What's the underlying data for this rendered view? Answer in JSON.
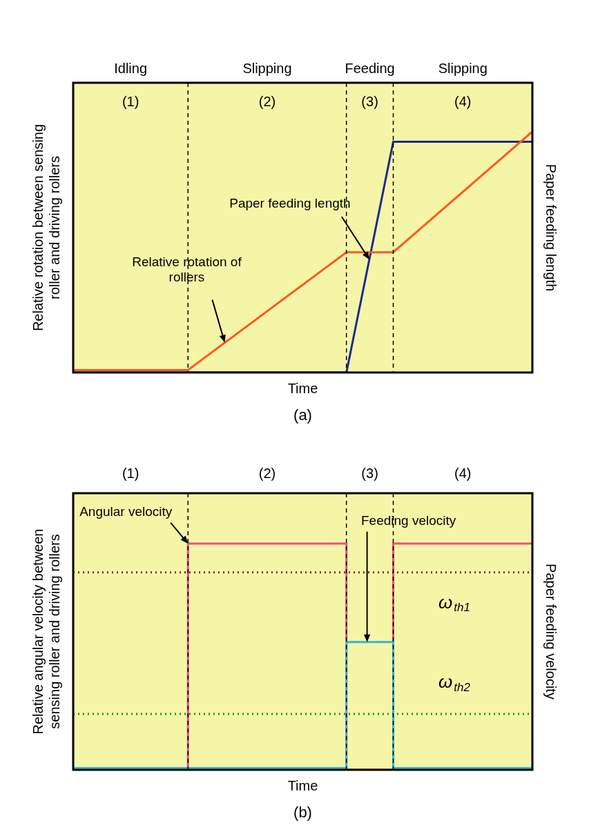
{
  "chart_data": [
    {
      "type": "line",
      "caption": "(a)",
      "x_label": "Time",
      "y_label": "Relative rotation between sensing roller and driving rollers",
      "y2_label": "Paper feeding length",
      "xlim": [
        0,
        10
      ],
      "ylim": [
        0,
        6
      ],
      "y2lim": [
        0,
        6
      ],
      "grid": false,
      "tick_labels": false,
      "phases": [
        {
          "number": "(1)",
          "state": "Idling"
        },
        {
          "number": "(2)",
          "state": "Slipping"
        },
        {
          "number": "(3)",
          "state": "Feeding"
        },
        {
          "number": "(4)",
          "state": "Slipping"
        }
      ],
      "phase_boundaries": [
        2.5,
        5.95,
        6.97
      ],
      "series": [
        {
          "name": "Relative rotation of rollers",
          "color": "#ff5a1f",
          "axis": "y",
          "line_style": "solid",
          "x": [
            0,
            2.5,
            5.95,
            6.97,
            10
          ],
          "values": [
            0.05,
            0.05,
            2.49,
            2.49,
            4.99
          ],
          "arrow_to": [
            3.3,
            0.62
          ]
        },
        {
          "name": "Paper feeding length",
          "color": "#1f2a8a",
          "axis": "y2",
          "line_style": "solid",
          "x": [
            0,
            5.95,
            6.97,
            10
          ],
          "values": [
            0,
            0,
            4.78,
            4.78
          ],
          "arrow_to": [
            6.45,
            2.34
          ]
        }
      ]
    },
    {
      "type": "line",
      "caption": "(b)",
      "x_label": "Time",
      "y_label": "Relative angular velocity between sensing roller and driving rollers",
      "y2_label": "Paper feeding velocity",
      "xlim": [
        0,
        10
      ],
      "ylim": [
        0,
        5
      ],
      "y2lim": [
        0,
        5
      ],
      "grid": false,
      "tick_labels": false,
      "phases": [
        {
          "number": "(1)"
        },
        {
          "number": "(2)"
        },
        {
          "number": "(3)"
        },
        {
          "number": "(4)"
        }
      ],
      "phase_boundaries": [
        2.5,
        5.95,
        6.97
      ],
      "thresholds": [
        {
          "label": "ωth1",
          "value": 3.57,
          "color": "#8b1a4a",
          "line_style": "dotted"
        },
        {
          "label": "ωth2",
          "value": 1.01,
          "color": "#1e8c2e",
          "line_style": "dotted"
        }
      ],
      "series": [
        {
          "name": "Feeding velocity",
          "color": "#33b5d6",
          "axis": "y2",
          "line_style": "solid",
          "x": [
            0,
            5.95,
            5.95,
            6.97,
            6.97,
            10
          ],
          "values": [
            0.03,
            0.03,
            2.31,
            2.31,
            0.03,
            0.03
          ],
          "arrow_to": [
            6.4,
            2.31
          ]
        },
        {
          "name": "Angular velocity",
          "color": "#ee4f7c",
          "axis": "y",
          "line_style": "solid",
          "x": [
            0,
            2.5,
            2.5,
            5.95,
            5.95,
            6.97,
            6.97,
            10
          ],
          "values": [
            0,
            0,
            4.09,
            4.09,
            0,
            0,
            4.09,
            4.09
          ],
          "arrow_to": [
            2.5,
            4.09
          ]
        }
      ]
    }
  ]
}
